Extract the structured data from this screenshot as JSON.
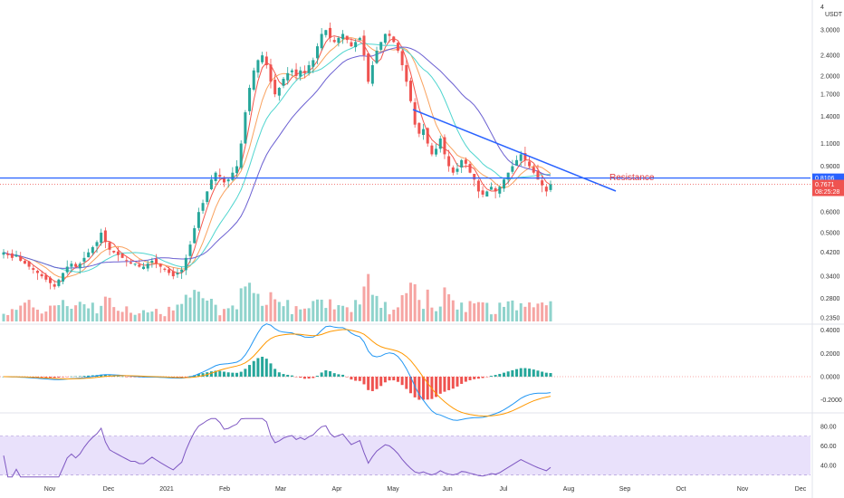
{
  "chart_data": {
    "type": "candlestick",
    "panes": [
      "price",
      "macd",
      "rsi"
    ],
    "price_axis": {
      "scale": "log",
      "currency_label": "USDT",
      "top_label": "4",
      "ticks": [
        "3.0000",
        "2.4000",
        "2.0000",
        "1.7000",
        "1.4000",
        "1.1000",
        "0.9000",
        "0.6000",
        "0.5000",
        "0.4200",
        "0.3400",
        "0.2800",
        "0.2350"
      ],
      "last_price": "0.7671",
      "countdown": "08:25:28",
      "resistance_price": "0.8106"
    },
    "macd_axis": {
      "ticks": [
        "0.4000",
        "0.2000",
        "0.0000",
        "-0.2000"
      ]
    },
    "rsi_axis": {
      "ticks": [
        "80.00",
        "60.00",
        "40.00"
      ],
      "band": [
        30,
        70
      ]
    },
    "time_axis": {
      "labels": [
        "Nov",
        "Dec",
        "2021",
        "Feb",
        "Mar",
        "Apr",
        "May",
        "Jun",
        "Jul",
        "Aug",
        "Sep",
        "Oct",
        "Nov",
        "Dec"
      ]
    },
    "series": [
      {
        "name": "close",
        "note": "daily close estimated",
        "values": [
          0.42,
          0.41,
          0.4,
          0.41,
          0.39,
          0.38,
          0.37,
          0.36,
          0.35,
          0.34,
          0.33,
          0.32,
          0.31,
          0.33,
          0.35,
          0.37,
          0.38,
          0.37,
          0.38,
          0.4,
          0.42,
          0.44,
          0.46,
          0.5,
          0.46,
          0.43,
          0.42,
          0.41,
          0.4,
          0.39,
          0.38,
          0.38,
          0.37,
          0.37,
          0.38,
          0.39,
          0.38,
          0.37,
          0.36,
          0.35,
          0.34,
          0.35,
          0.36,
          0.4,
          0.45,
          0.52,
          0.6,
          0.65,
          0.72,
          0.8,
          0.85,
          0.82,
          0.78,
          0.8,
          0.85,
          0.9,
          1.1,
          1.45,
          1.8,
          2.1,
          2.3,
          2.4,
          2.2,
          1.9,
          1.7,
          1.8,
          1.95,
          2.05,
          2.1,
          2.0,
          2.1,
          2.05,
          2.2,
          2.3,
          2.6,
          2.9,
          3.0,
          2.8,
          2.7,
          2.8,
          2.9,
          2.75,
          2.6,
          2.7,
          2.8,
          2.4,
          1.9,
          2.2,
          2.5,
          2.7,
          2.9,
          2.85,
          2.7,
          2.5,
          2.2,
          1.9,
          1.6,
          1.3,
          1.2,
          1.25,
          1.1,
          1.0,
          1.05,
          1.15,
          1.0,
          0.9,
          0.85,
          0.88,
          0.95,
          0.92,
          0.85,
          0.8,
          0.72,
          0.7,
          0.72,
          0.75,
          0.72,
          0.75,
          0.8,
          0.85,
          0.9,
          0.95,
          1.0,
          0.95,
          0.9,
          0.85,
          0.8,
          0.76,
          0.72,
          0.7671
        ]
      },
      {
        "name": "ma-red",
        "color": "#f4574c"
      },
      {
        "name": "ma-orange",
        "color": "#f9a25f"
      },
      {
        "name": "ma-teal",
        "color": "#4fd5cf"
      },
      {
        "name": "ma-purple",
        "color": "#6a5fd1"
      }
    ],
    "annotations": [
      {
        "text": "Resistance",
        "color": "#e0383e"
      }
    ],
    "colors": {
      "up": "#26a69a",
      "down": "#ef5350",
      "trendline": "#2962ff",
      "resistance_line": "#2962ff",
      "rsi_line": "#7e57c2",
      "rsi_band": "#e9e1fb"
    }
  }
}
